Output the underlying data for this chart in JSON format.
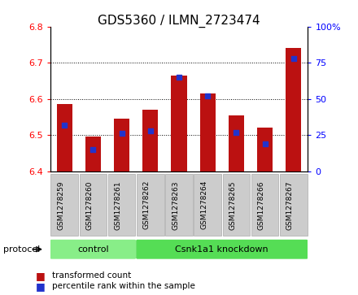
{
  "title": "GDS5360 / ILMN_2723474",
  "samples": [
    "GSM1278259",
    "GSM1278260",
    "GSM1278261",
    "GSM1278262",
    "GSM1278263",
    "GSM1278264",
    "GSM1278265",
    "GSM1278266",
    "GSM1278267"
  ],
  "transformed_counts": [
    6.585,
    6.495,
    6.545,
    6.57,
    6.665,
    6.615,
    6.555,
    6.52,
    6.74
  ],
  "percentile_ranks": [
    32,
    15,
    26,
    28,
    65,
    52,
    27,
    19,
    78
  ],
  "ylim_left": [
    6.4,
    6.8
  ],
  "ylim_right": [
    0,
    100
  ],
  "yticks_left": [
    6.4,
    6.5,
    6.6,
    6.7,
    6.8
  ],
  "yticks_right": [
    0,
    25,
    50,
    75,
    100
  ],
  "bar_bottom": 6.4,
  "bar_color": "#bb1111",
  "percentile_color": "#2233cc",
  "bg_color": "#ffffff",
  "control_color": "#88ee88",
  "knockdown_color": "#55dd55",
  "gray_color": "#cccccc",
  "protocol_label": "protocol",
  "legend_items": [
    {
      "label": "transformed count",
      "color": "#bb1111"
    },
    {
      "label": "percentile rank within the sample",
      "color": "#2233cc"
    }
  ],
  "bar_width": 0.55,
  "tick_fontsize": 8,
  "title_fontsize": 11
}
